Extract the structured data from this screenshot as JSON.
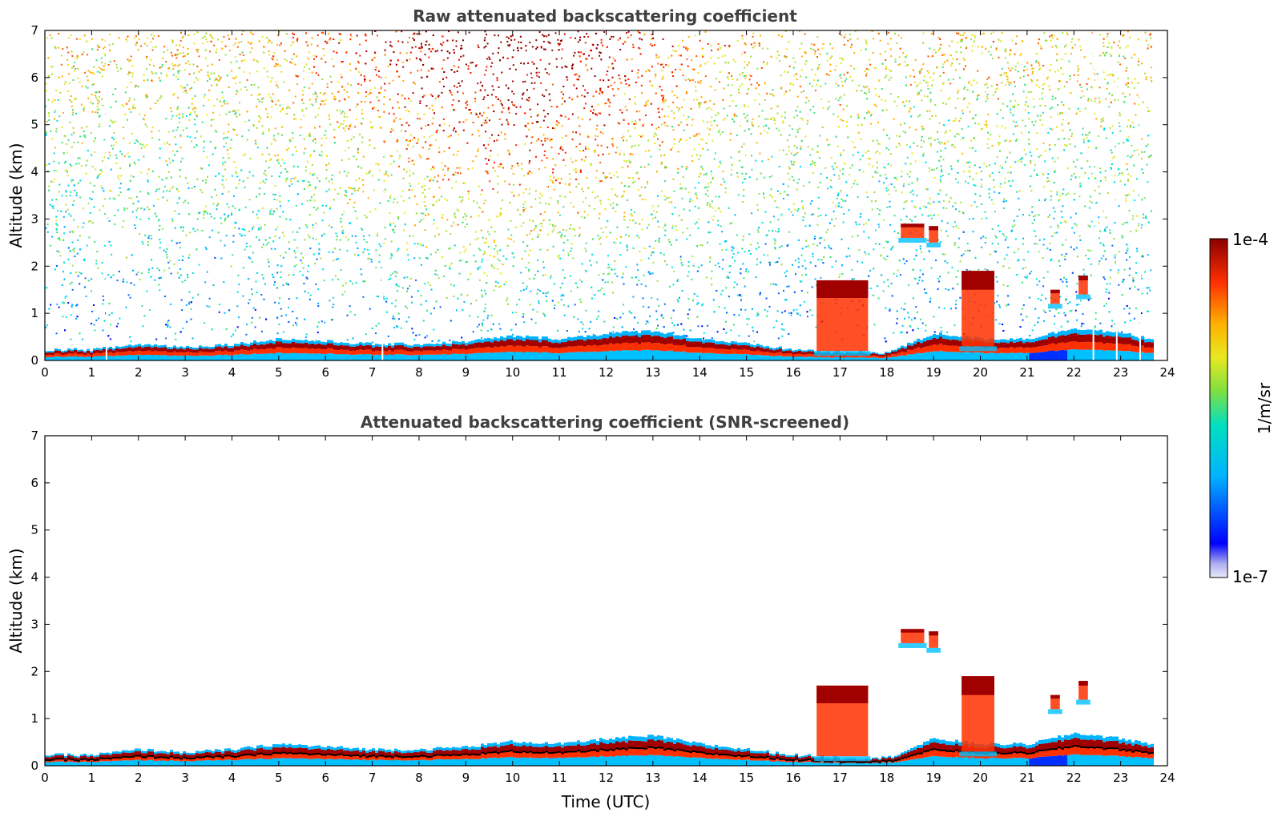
{
  "chart_data": [
    {
      "type": "heatmap",
      "title": "Raw attenuated backscattering coefficient",
      "xlabel": "",
      "ylabel": "Altitude (km)",
      "xlim": [
        0,
        24
      ],
      "ylim": [
        0,
        7
      ],
      "xticks": [
        "0",
        "1",
        "2",
        "3",
        "4",
        "5",
        "6",
        "7",
        "8",
        "9",
        "10",
        "11",
        "12",
        "13",
        "14",
        "15",
        "16",
        "17",
        "18",
        "19",
        "20",
        "21",
        "22",
        "23",
        "24"
      ],
      "yticks": [
        "0",
        "1",
        "2",
        "3",
        "4",
        "5",
        "6",
        "7"
      ],
      "boundary_layer_top_km": [
        [
          0,
          0.2
        ],
        [
          1,
          0.2
        ],
        [
          2,
          0.3
        ],
        [
          3,
          0.25
        ],
        [
          4,
          0.3
        ],
        [
          5,
          0.4
        ],
        [
          6,
          0.35
        ],
        [
          7,
          0.3
        ],
        [
          8,
          0.3
        ],
        [
          9,
          0.35
        ],
        [
          10,
          0.45
        ],
        [
          11,
          0.4
        ],
        [
          12,
          0.5
        ],
        [
          13,
          0.55
        ],
        [
          14,
          0.4
        ],
        [
          15,
          0.3
        ],
        [
          16,
          0.2
        ],
        [
          17,
          0.15
        ],
        [
          18,
          0.15
        ],
        [
          19,
          0.5
        ],
        [
          20,
          0.4
        ],
        [
          21,
          0.4
        ],
        [
          22,
          0.6
        ],
        [
          23,
          0.5
        ],
        [
          23.6,
          0.4
        ]
      ],
      "cloud_layers": [
        {
          "t_start": 18.3,
          "t_end": 18.8,
          "alt_bottom_km": 2.6,
          "alt_top_km": 2.9
        },
        {
          "t_start": 18.9,
          "t_end": 19.1,
          "alt_bottom_km": 2.5,
          "alt_top_km": 2.85
        },
        {
          "t_start": 19.6,
          "t_end": 20.3,
          "alt_bottom_km": 0.3,
          "alt_top_km": 1.9
        },
        {
          "t_start": 21.5,
          "t_end": 21.7,
          "alt_bottom_km": 1.2,
          "alt_top_km": 1.5
        },
        {
          "t_start": 22.1,
          "t_end": 22.3,
          "alt_bottom_km": 1.4,
          "alt_top_km": 1.8
        },
        {
          "t_start": 16.5,
          "t_end": 17.6,
          "alt_bottom_km": 0.2,
          "alt_top_km": 1.7
        }
      ],
      "data_gaps_utc": [
        1.3,
        7.2,
        22.4,
        22.9,
        23.4
      ],
      "data_end_utc": 23.65
    },
    {
      "type": "heatmap",
      "title": "Attenuated backscattering coefficient (SNR-screened)",
      "xlabel": "Time (UTC)",
      "ylabel": "Altitude (km)",
      "xlim": [
        0,
        24
      ],
      "ylim": [
        0,
        7
      ],
      "xticks": [
        "0",
        "1",
        "2",
        "3",
        "4",
        "5",
        "6",
        "7",
        "8",
        "9",
        "10",
        "11",
        "12",
        "13",
        "14",
        "15",
        "16",
        "17",
        "18",
        "19",
        "20",
        "21",
        "22",
        "23",
        "24"
      ],
      "yticks": [
        "0",
        "1",
        "2",
        "3",
        "4",
        "5",
        "6",
        "7"
      ],
      "boundary_layer_top_km": [
        [
          0,
          0.2
        ],
        [
          1,
          0.2
        ],
        [
          2,
          0.3
        ],
        [
          3,
          0.25
        ],
        [
          4,
          0.3
        ],
        [
          5,
          0.4
        ],
        [
          6,
          0.35
        ],
        [
          7,
          0.3
        ],
        [
          8,
          0.3
        ],
        [
          9,
          0.35
        ],
        [
          10,
          0.45
        ],
        [
          11,
          0.4
        ],
        [
          12,
          0.5
        ],
        [
          13,
          0.55
        ],
        [
          14,
          0.4
        ],
        [
          15,
          0.3
        ],
        [
          16,
          0.2
        ],
        [
          17,
          0.15
        ],
        [
          18,
          0.15
        ],
        [
          19,
          0.5
        ],
        [
          20,
          0.4
        ],
        [
          21,
          0.4
        ],
        [
          22,
          0.6
        ],
        [
          23,
          0.5
        ],
        [
          23.6,
          0.4
        ]
      ],
      "cloud_layers": [
        {
          "t_start": 18.3,
          "t_end": 18.8,
          "alt_bottom_km": 2.6,
          "alt_top_km": 2.9
        },
        {
          "t_start": 18.9,
          "t_end": 19.1,
          "alt_bottom_km": 2.5,
          "alt_top_km": 2.85
        },
        {
          "t_start": 19.6,
          "t_end": 20.3,
          "alt_bottom_km": 0.3,
          "alt_top_km": 1.9
        },
        {
          "t_start": 21.5,
          "t_end": 21.7,
          "alt_bottom_km": 1.2,
          "alt_top_km": 1.5
        },
        {
          "t_start": 22.1,
          "t_end": 22.3,
          "alt_bottom_km": 1.4,
          "alt_top_km": 1.8
        },
        {
          "t_start": 16.5,
          "t_end": 17.6,
          "alt_bottom_km": 0.2,
          "alt_top_km": 1.7
        }
      ],
      "data_end_utc": 23.65
    }
  ],
  "colorbar": {
    "max_label": "1e-4",
    "min_label": "1e-7",
    "unit_label": "1/m/sr",
    "colormap": "jet",
    "scale": "log",
    "range": [
      1e-07,
      0.0001
    ]
  }
}
